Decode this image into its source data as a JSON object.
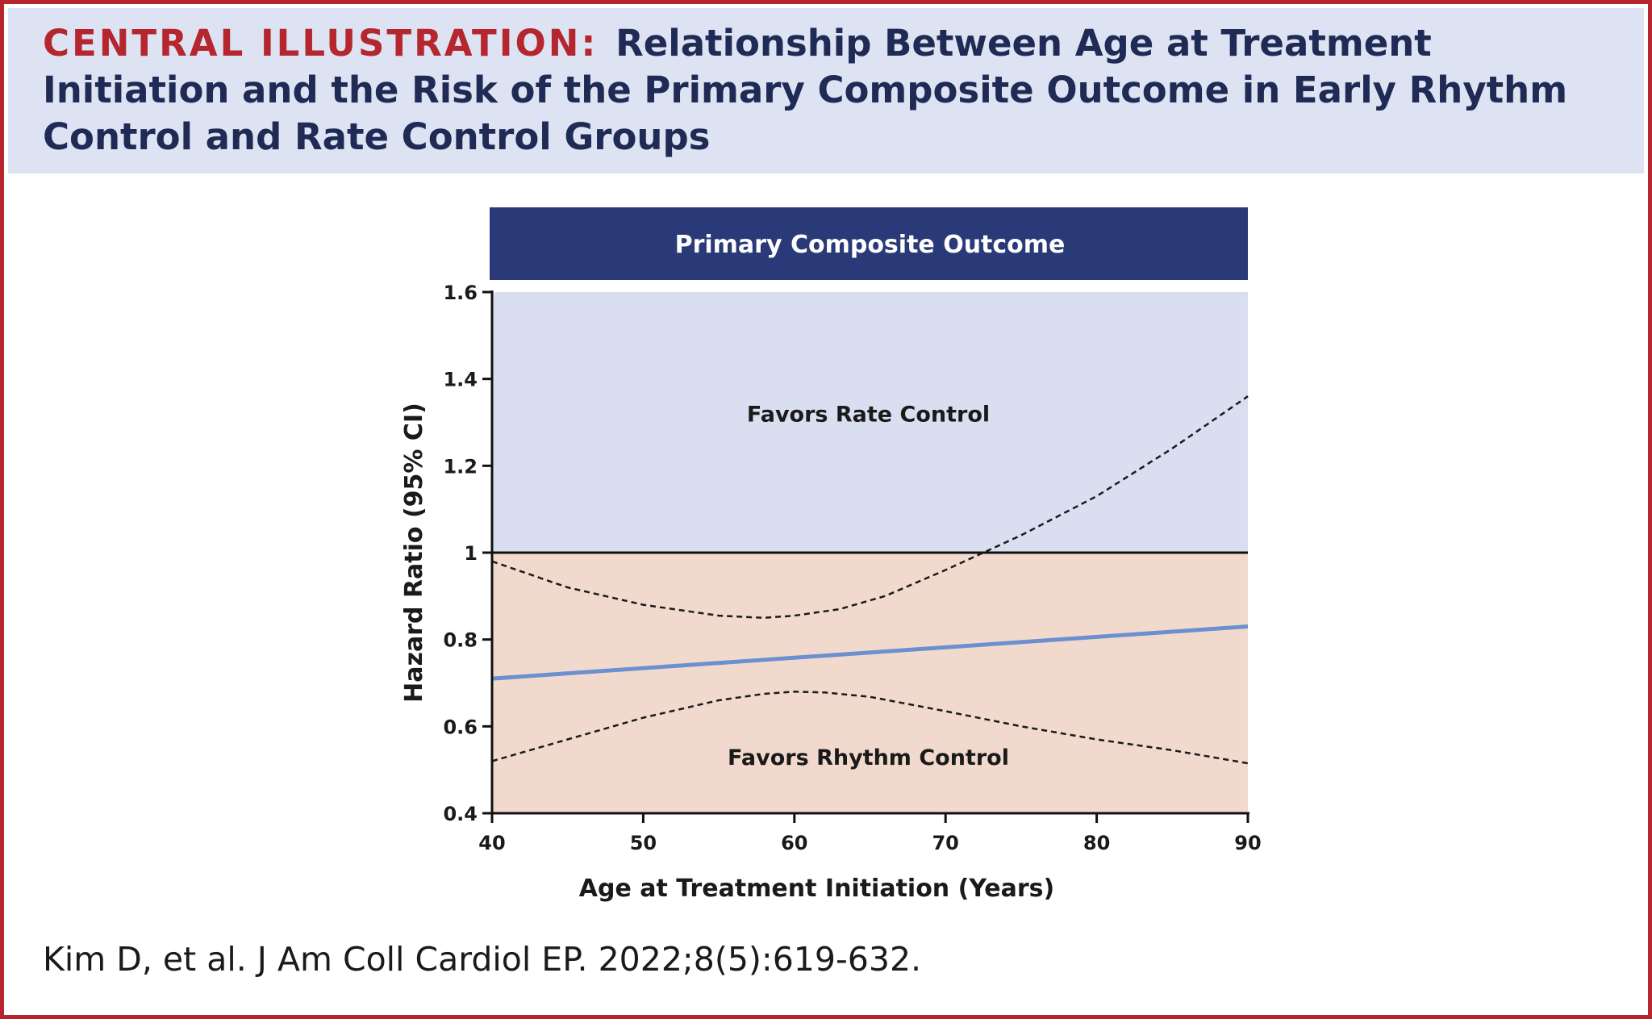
{
  "figure": {
    "label": "CENTRAL ILLUSTRATION:",
    "title": "Relationship Between Age at Treatment Initiation and the Risk of the Primary Composite Outcome in Early Rhythm Control and Rate Control Groups",
    "citation": "Kim D, et al. J Am Coll Cardiol EP. 2022;8(5):619-632."
  },
  "colors": {
    "accent_red": "#b5262f",
    "navy": "#2a3a78",
    "header_bg": "#dde3f2",
    "favors_rate_bg": "#d9dff0",
    "favors_rhythm_bg": "#f1dacd",
    "hr_line": "#6b8fd0",
    "ci_line": "#1a1a1a"
  },
  "chart_data": {
    "type": "line",
    "title": "Primary Composite Outcome",
    "xlabel": "Age at Treatment Initiation (Years)",
    "ylabel": "Hazard Ratio (95% CI)",
    "xlim": [
      40,
      90
    ],
    "ylim": [
      0.4,
      1.6
    ],
    "x_ticks": [
      40,
      50,
      60,
      70,
      80,
      90
    ],
    "y_ticks": [
      0.4,
      0.6,
      0.8,
      1,
      1.2,
      1.4,
      1.6
    ],
    "y_tick_labels": [
      "0.4",
      "0.6",
      "0.8",
      "1",
      "1.2",
      "1.4",
      "1.6"
    ],
    "reference_line": 1,
    "grid": false,
    "regions": [
      {
        "label": "Favors Rate Control",
        "from": 1,
        "to": 1.6,
        "label_at": [
          65,
          1.32
        ]
      },
      {
        "label": "Favors Rhythm Control",
        "from": 0.4,
        "to": 1,
        "label_at": [
          65,
          0.53
        ]
      }
    ],
    "series": [
      {
        "style": "solid",
        "x": [
          40,
          90
        ],
        "y": [
          0.71,
          0.83
        ]
      },
      {
        "style": "dashed",
        "x": [
          40,
          45,
          50,
          55,
          58,
          60,
          63,
          66,
          70,
          72.5,
          75,
          80,
          85,
          90
        ],
        "y": [
          0.98,
          0.92,
          0.88,
          0.855,
          0.85,
          0.855,
          0.87,
          0.9,
          0.96,
          1.0,
          1.04,
          1.13,
          1.24,
          1.36
        ]
      },
      {
        "style": "dashed",
        "x": [
          40,
          45,
          50,
          55,
          58,
          60,
          62,
          65,
          70,
          75,
          80,
          85,
          90
        ],
        "y": [
          0.52,
          0.57,
          0.62,
          0.66,
          0.675,
          0.68,
          0.678,
          0.668,
          0.635,
          0.6,
          0.57,
          0.545,
          0.515
        ]
      }
    ]
  }
}
